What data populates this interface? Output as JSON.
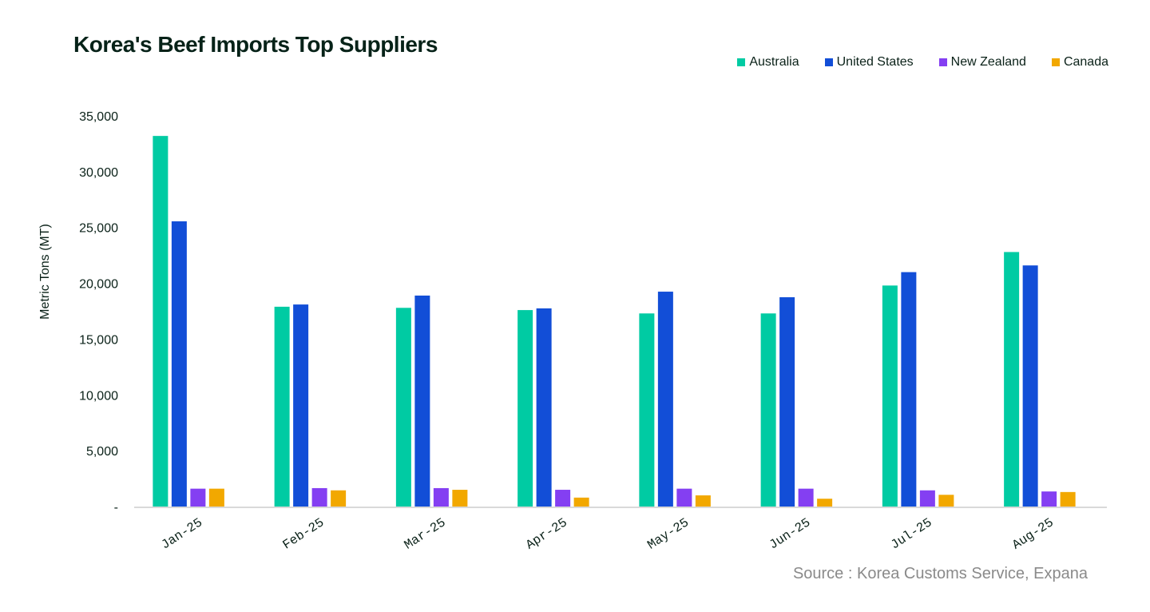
{
  "chart_data": {
    "type": "bar",
    "title": "Korea's Beef Imports Top Suppliers",
    "xlabel": "",
    "ylabel": "Metric Tons (MT)",
    "ylim": [
      0,
      35000
    ],
    "yticks": [
      0,
      5000,
      10000,
      15000,
      20000,
      25000,
      30000,
      35000
    ],
    "ytick_labels": [
      "-",
      "5,000",
      "10,000",
      "15,000",
      "20,000",
      "25,000",
      "30,000",
      "35,000"
    ],
    "categories": [
      "Jan-25",
      "Feb-25",
      "Mar-25",
      "Apr-25",
      "May-25",
      "Jun-25",
      "Jul-25",
      "Aug-25"
    ],
    "series": [
      {
        "name": "Australia",
        "color": "#00cba3",
        "values": [
          33200,
          17900,
          17800,
          17600,
          17300,
          17300,
          19800,
          22800
        ]
      },
      {
        "name": "United States",
        "color": "#124ed7",
        "values": [
          25550,
          18100,
          18900,
          17750,
          19250,
          18750,
          21000,
          21600
        ]
      },
      {
        "name": "New Zealand",
        "color": "#843ff2",
        "values": [
          1600,
          1650,
          1650,
          1500,
          1600,
          1600,
          1450,
          1350
        ]
      },
      {
        "name": "Canada",
        "color": "#f2a800",
        "values": [
          1600,
          1450,
          1500,
          800,
          1000,
          700,
          1050,
          1300
        ]
      }
    ],
    "legend_position": "top-right",
    "grid": false,
    "source": "Source : Korea Customs Service, Expana"
  }
}
